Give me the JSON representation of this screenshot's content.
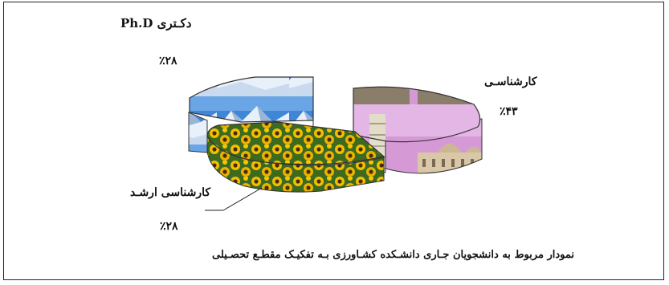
{
  "chart_data": {
    "type": "pie",
    "title": "",
    "caption": "نمودار مربوط به دانشجویان جـاری دانشـکده کشـاورزی بـه تفکیـک مقطـع تحصـیلی",
    "slices": [
      {
        "name": "کارشناسـی",
        "value": 43,
        "label": "٪۴۳"
      },
      {
        "name": "کارشناسی ارشـد",
        "value": 28,
        "label": "٪۲۸"
      },
      {
        "name": "دکـتری  Ph.D",
        "value": 28,
        "label": "٪۲۸"
      }
    ],
    "legend": "none"
  },
  "colors": {
    "bachelor_sky": "#d59ad6",
    "bachelor_building": "#c8b69a",
    "masters_field": "#e2b100",
    "masters_flower_center": "#4a2a05",
    "phd_sky": "#2f74c7",
    "phd_snow": "#e8f0fa",
    "frame": "#222222"
  }
}
